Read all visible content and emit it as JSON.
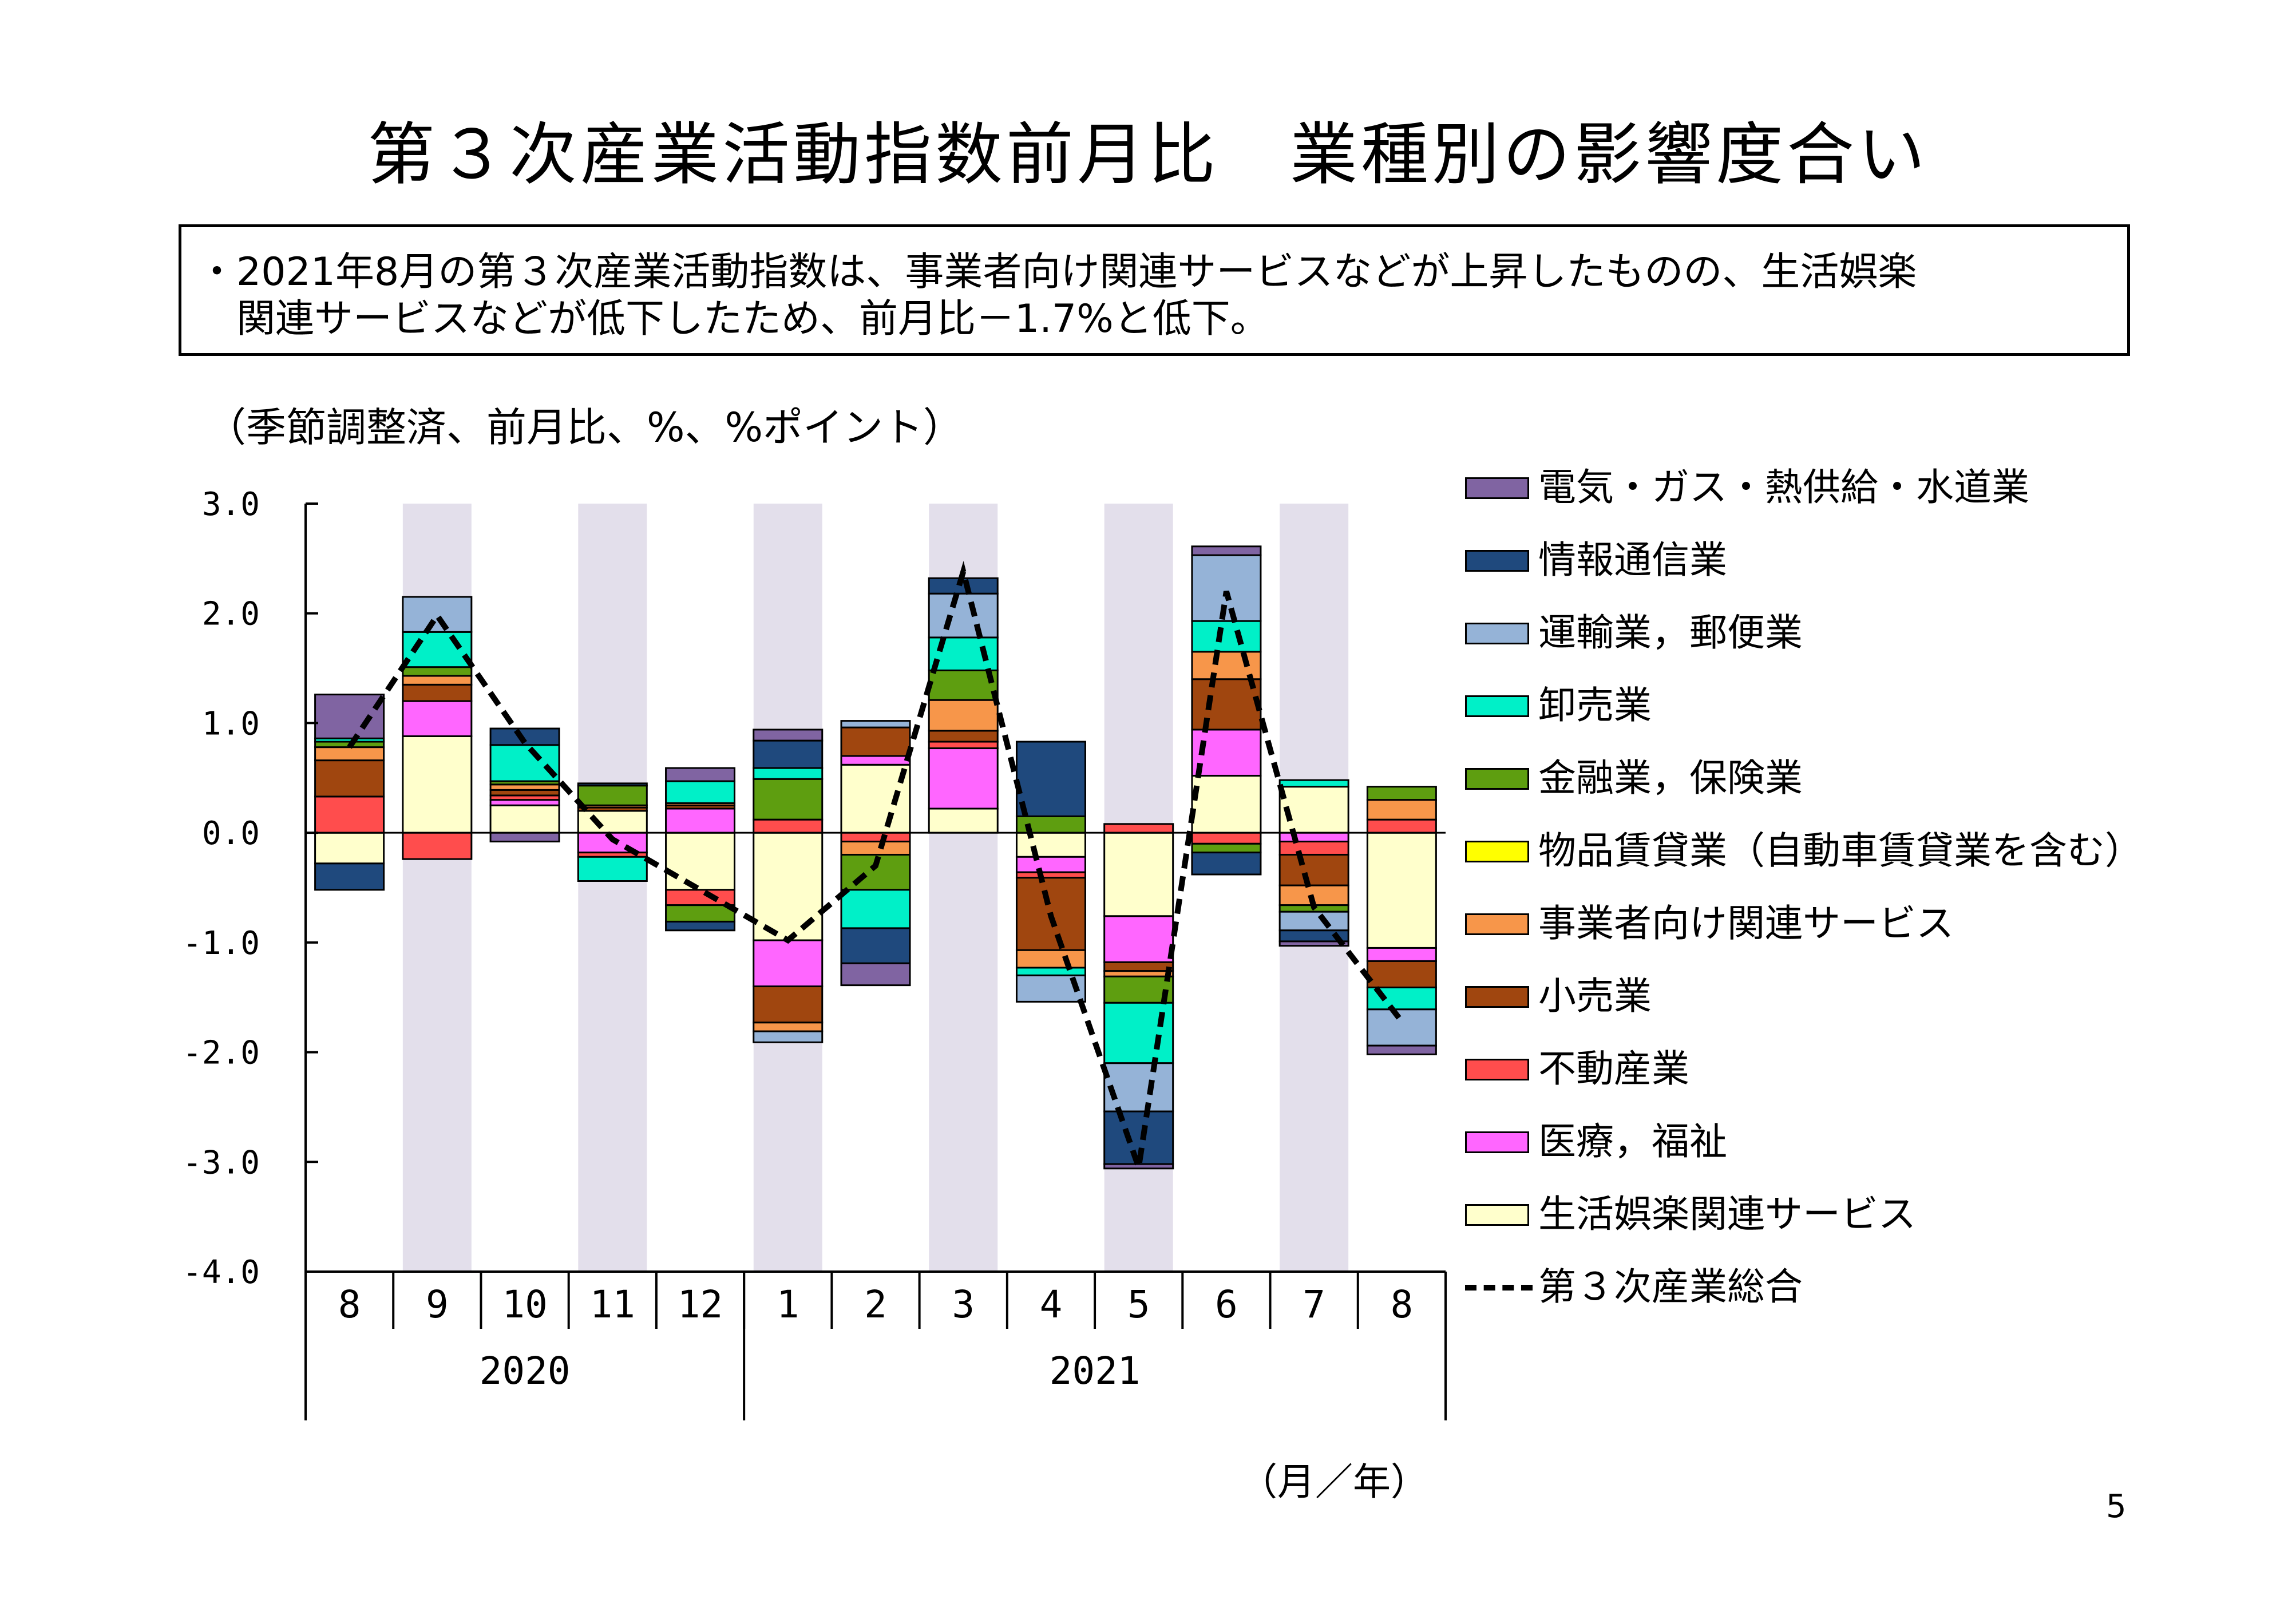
{
  "title": "第３次産業活動指数前月比　業種別の影響度合い",
  "summary": "・2021年8月の第３次産業活動指数は、事業者向け関連サービスなどが上昇したものの、生活娯楽\n　関連サービスなどが低下したため、前月比－1.7%と低下。",
  "unit_note": "（季節調整済、前月比、%、%ポイント）",
  "page_number": "5",
  "chart_data": {
    "type": "bar",
    "stacked": true,
    "categories": [
      "8",
      "9",
      "10",
      "11",
      "12",
      "1",
      "2",
      "3",
      "4",
      "5",
      "6",
      "7",
      "8"
    ],
    "year_groups": [
      {
        "label": "2020",
        "count": 5
      },
      {
        "label": "2021",
        "count": 8
      }
    ],
    "axis_unit": "（月／年）",
    "ylim": [
      -4.0,
      3.0
    ],
    "yticks": [
      "3.0",
      "2.0",
      "1.0",
      "0.0",
      "-1.0",
      "-2.0",
      "-3.0",
      "-4.0"
    ],
    "shaded_categories": [
      1,
      3,
      5,
      7,
      9,
      11
    ],
    "shade_color": "#e3dfeb",
    "series": [
      {
        "name": "生活娯楽関連サービス",
        "color": "#ffffcc",
        "values": [
          -0.28,
          0.88,
          0.25,
          0.2,
          -0.52,
          -0.98,
          0.62,
          0.22,
          -0.22,
          -0.76,
          0.52,
          0.42,
          -1.05
        ]
      },
      {
        "name": "医療，福祉",
        "color": "#ff66ff",
        "values": [
          0.0,
          0.32,
          0.05,
          -0.18,
          0.22,
          -0.42,
          0.08,
          0.55,
          -0.14,
          -0.42,
          0.42,
          -0.08,
          -0.12
        ]
      },
      {
        "name": "不動産業",
        "color": "#ff4d4d",
        "values": [
          0.33,
          -0.24,
          0.04,
          -0.04,
          -0.14,
          0.12,
          -0.08,
          0.06,
          -0.05,
          0.08,
          -0.1,
          -0.12,
          0.12
        ]
      },
      {
        "name": "小売業",
        "color": "#a0460f",
        "values": [
          0.33,
          0.15,
          0.05,
          0.03,
          0.03,
          -0.33,
          0.26,
          0.1,
          -0.66,
          -0.08,
          0.46,
          -0.28,
          -0.24
        ]
      },
      {
        "name": "事業者向け関連サービス",
        "color": "#f7964a",
        "values": [
          0.12,
          0.08,
          0.05,
          0.02,
          0.02,
          -0.08,
          -0.12,
          0.28,
          -0.16,
          -0.05,
          0.25,
          -0.18,
          0.18
        ]
      },
      {
        "name": "物品賃貸業（自動車賃貸業を含む）",
        "color": "#ffff00",
        "values": [
          0.0,
          0.0,
          0.0,
          0.0,
          0.0,
          0.0,
          0.0,
          0.0,
          0.0,
          0.0,
          0.0,
          0.0,
          0.0
        ]
      },
      {
        "name": "金融業，保険業",
        "color": "#5e9e10",
        "values": [
          0.05,
          0.08,
          0.03,
          0.18,
          -0.15,
          0.37,
          -0.32,
          0.27,
          0.15,
          -0.24,
          -0.08,
          -0.06,
          0.12
        ]
      },
      {
        "name": "卸売業",
        "color": "#00f0c8",
        "values": [
          0.03,
          0.32,
          0.33,
          -0.22,
          0.2,
          0.1,
          -0.35,
          0.3,
          -0.07,
          -0.55,
          0.28,
          0.06,
          -0.2
        ]
      },
      {
        "name": "運輸業，郵便業",
        "color": "#95b3d7",
        "values": [
          0.0,
          0.32,
          0.0,
          0.0,
          0.0,
          -0.1,
          0.06,
          0.4,
          -0.24,
          -0.44,
          0.6,
          -0.17,
          -0.33
        ]
      },
      {
        "name": "情報通信業",
        "color": "#1f497d",
        "values": [
          -0.24,
          0.0,
          0.15,
          0.02,
          -0.08,
          0.25,
          -0.32,
          0.14,
          0.68,
          -0.48,
          -0.2,
          -0.1,
          0.0
        ]
      },
      {
        "name": "電気・ガス・熱供給・水道業",
        "color": "#8064a2",
        "values": [
          0.4,
          0.0,
          -0.08,
          0.0,
          0.12,
          0.1,
          -0.2,
          0.0,
          0.0,
          -0.04,
          0.08,
          -0.04,
          -0.08
        ]
      }
    ],
    "total": {
      "name": "第３次産業総合",
      "values": [
        0.78,
        1.98,
        0.82,
        -0.06,
        -0.52,
        -0.98,
        -0.3,
        2.38,
        -0.76,
        -3.05,
        2.2,
        -0.68,
        -1.72
      ]
    },
    "legend_position": "right"
  }
}
